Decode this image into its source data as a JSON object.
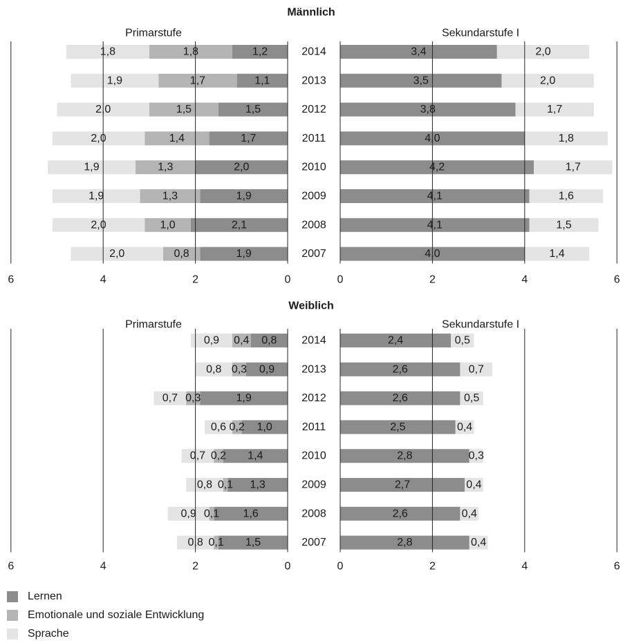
{
  "colors": {
    "lernen": "#8c8c8c",
    "emotional": "#b4b4b4",
    "sprache": "#e4e4e4",
    "grid": "#222222",
    "text": "#1a1a1a"
  },
  "legend": [
    {
      "key": "lernen",
      "label": "Lernen"
    },
    {
      "key": "emotional",
      "label": "Emotionale und soziale Entwicklung"
    },
    {
      "key": "sprache",
      "label": "Sprache"
    }
  ],
  "chart_data": [
    {
      "type": "bar",
      "title": "Männlich",
      "years": [
        "2014",
        "2013",
        "2012",
        "2011",
        "2010",
        "2009",
        "2008",
        "2007"
      ],
      "primar": {
        "label": "Primarstufe",
        "xlim": [
          0,
          6
        ],
        "ticks": [
          "6",
          "4",
          "2",
          "0"
        ],
        "series": [
          {
            "key": "lernen",
            "name": "Lernen",
            "values": [
              1.2,
              1.1,
              1.5,
              1.7,
              2.0,
              1.9,
              2.1,
              1.9
            ],
            "labels": [
              "1,2",
              "1,1",
              "1,5",
              "1,7",
              "2,0",
              "1,9",
              "2,1",
              "1,9"
            ]
          },
          {
            "key": "emotional",
            "name": "Emotionale und soziale Entwicklung",
            "values": [
              1.8,
              1.7,
              1.5,
              1.4,
              1.3,
              1.3,
              1.0,
              0.8
            ],
            "labels": [
              "1,8",
              "1,7",
              "1,5",
              "1,4",
              "1,3",
              "1,3",
              "1,0",
              "0,8"
            ]
          },
          {
            "key": "sprache",
            "name": "Sprache",
            "values": [
              1.8,
              1.9,
              2.0,
              2.0,
              1.9,
              1.9,
              2.0,
              2.0
            ],
            "labels": [
              "1,8",
              "1,9",
              "2,0",
              "2,0",
              "1,9",
              "1,9",
              "2,0",
              "2,0"
            ]
          }
        ]
      },
      "sekundar": {
        "label": "Sekundarstufe I",
        "xlim": [
          0,
          6
        ],
        "ticks": [
          "0",
          "2",
          "4",
          "6"
        ],
        "series": [
          {
            "key": "lernen",
            "name": "Lernen",
            "values": [
              3.4,
              3.5,
              3.8,
              4.0,
              4.2,
              4.1,
              4.1,
              4.0
            ],
            "labels": [
              "3,4",
              "3,5",
              "3,8",
              "4,0",
              "4,2",
              "4,1",
              "4,1",
              "4,0"
            ]
          },
          {
            "key": "sprache",
            "name": "Sprache",
            "values": [
              2.0,
              2.0,
              1.7,
              1.8,
              1.7,
              1.6,
              1.5,
              1.4
            ],
            "labels": [
              "2,0",
              "2,0",
              "1,7",
              "1,8",
              "1,7",
              "1,6",
              "1,5",
              "1,4"
            ]
          }
        ]
      }
    },
    {
      "type": "bar",
      "title": "Weiblich",
      "years": [
        "2014",
        "2013",
        "2012",
        "2011",
        "2010",
        "2009",
        "2008",
        "2007"
      ],
      "primar": {
        "label": "Primarstufe",
        "xlim": [
          0,
          6
        ],
        "ticks": [
          "6",
          "4",
          "2",
          "0"
        ],
        "series": [
          {
            "key": "lernen",
            "name": "Lernen",
            "values": [
              0.8,
              0.9,
              1.9,
              1.0,
              1.4,
              1.3,
              1.6,
              1.5
            ],
            "labels": [
              "0,8",
              "0,9",
              "1,9",
              "1,0",
              "1,4",
              "1,3",
              "1,6",
              "1,5"
            ]
          },
          {
            "key": "emotional",
            "name": "Emotionale und soziale Entwicklung",
            "values": [
              0.4,
              0.3,
              0.3,
              0.2,
              0.2,
              0.1,
              0.1,
              0.1
            ],
            "labels": [
              "0,4",
              "0,3",
              "0,3",
              "0,2",
              "0,2",
              "0,1",
              "0,1",
              "0,1"
            ]
          },
          {
            "key": "sprache",
            "name": "Sprache",
            "values": [
              0.9,
              0.8,
              0.7,
              0.6,
              0.7,
              0.8,
              0.9,
              0.8
            ],
            "labels": [
              "0,9",
              "0,8",
              "0,7",
              "0,6",
              "0,7",
              "0,8",
              "0,9",
              "0,8"
            ]
          }
        ]
      },
      "sekundar": {
        "label": "Sekundarstufe I",
        "xlim": [
          0,
          6
        ],
        "ticks": [
          "0",
          "2",
          "4",
          "6"
        ],
        "series": [
          {
            "key": "lernen",
            "name": "Lernen",
            "values": [
              2.4,
              2.6,
              2.6,
              2.5,
              2.8,
              2.7,
              2.6,
              2.8
            ],
            "labels": [
              "2,4",
              "2,6",
              "2,6",
              "2,5",
              "2,8",
              "2,7",
              "2,6",
              "2,8"
            ]
          },
          {
            "key": "sprache",
            "name": "Sprache",
            "values": [
              0.5,
              0.7,
              0.5,
              0.4,
              0.3,
              0.4,
              0.4,
              0.4
            ],
            "labels": [
              "0,5",
              "0,7",
              "0,5",
              "0,4",
              "0,3",
              "0,4",
              "0,4",
              "0,4"
            ]
          }
        ]
      }
    }
  ]
}
